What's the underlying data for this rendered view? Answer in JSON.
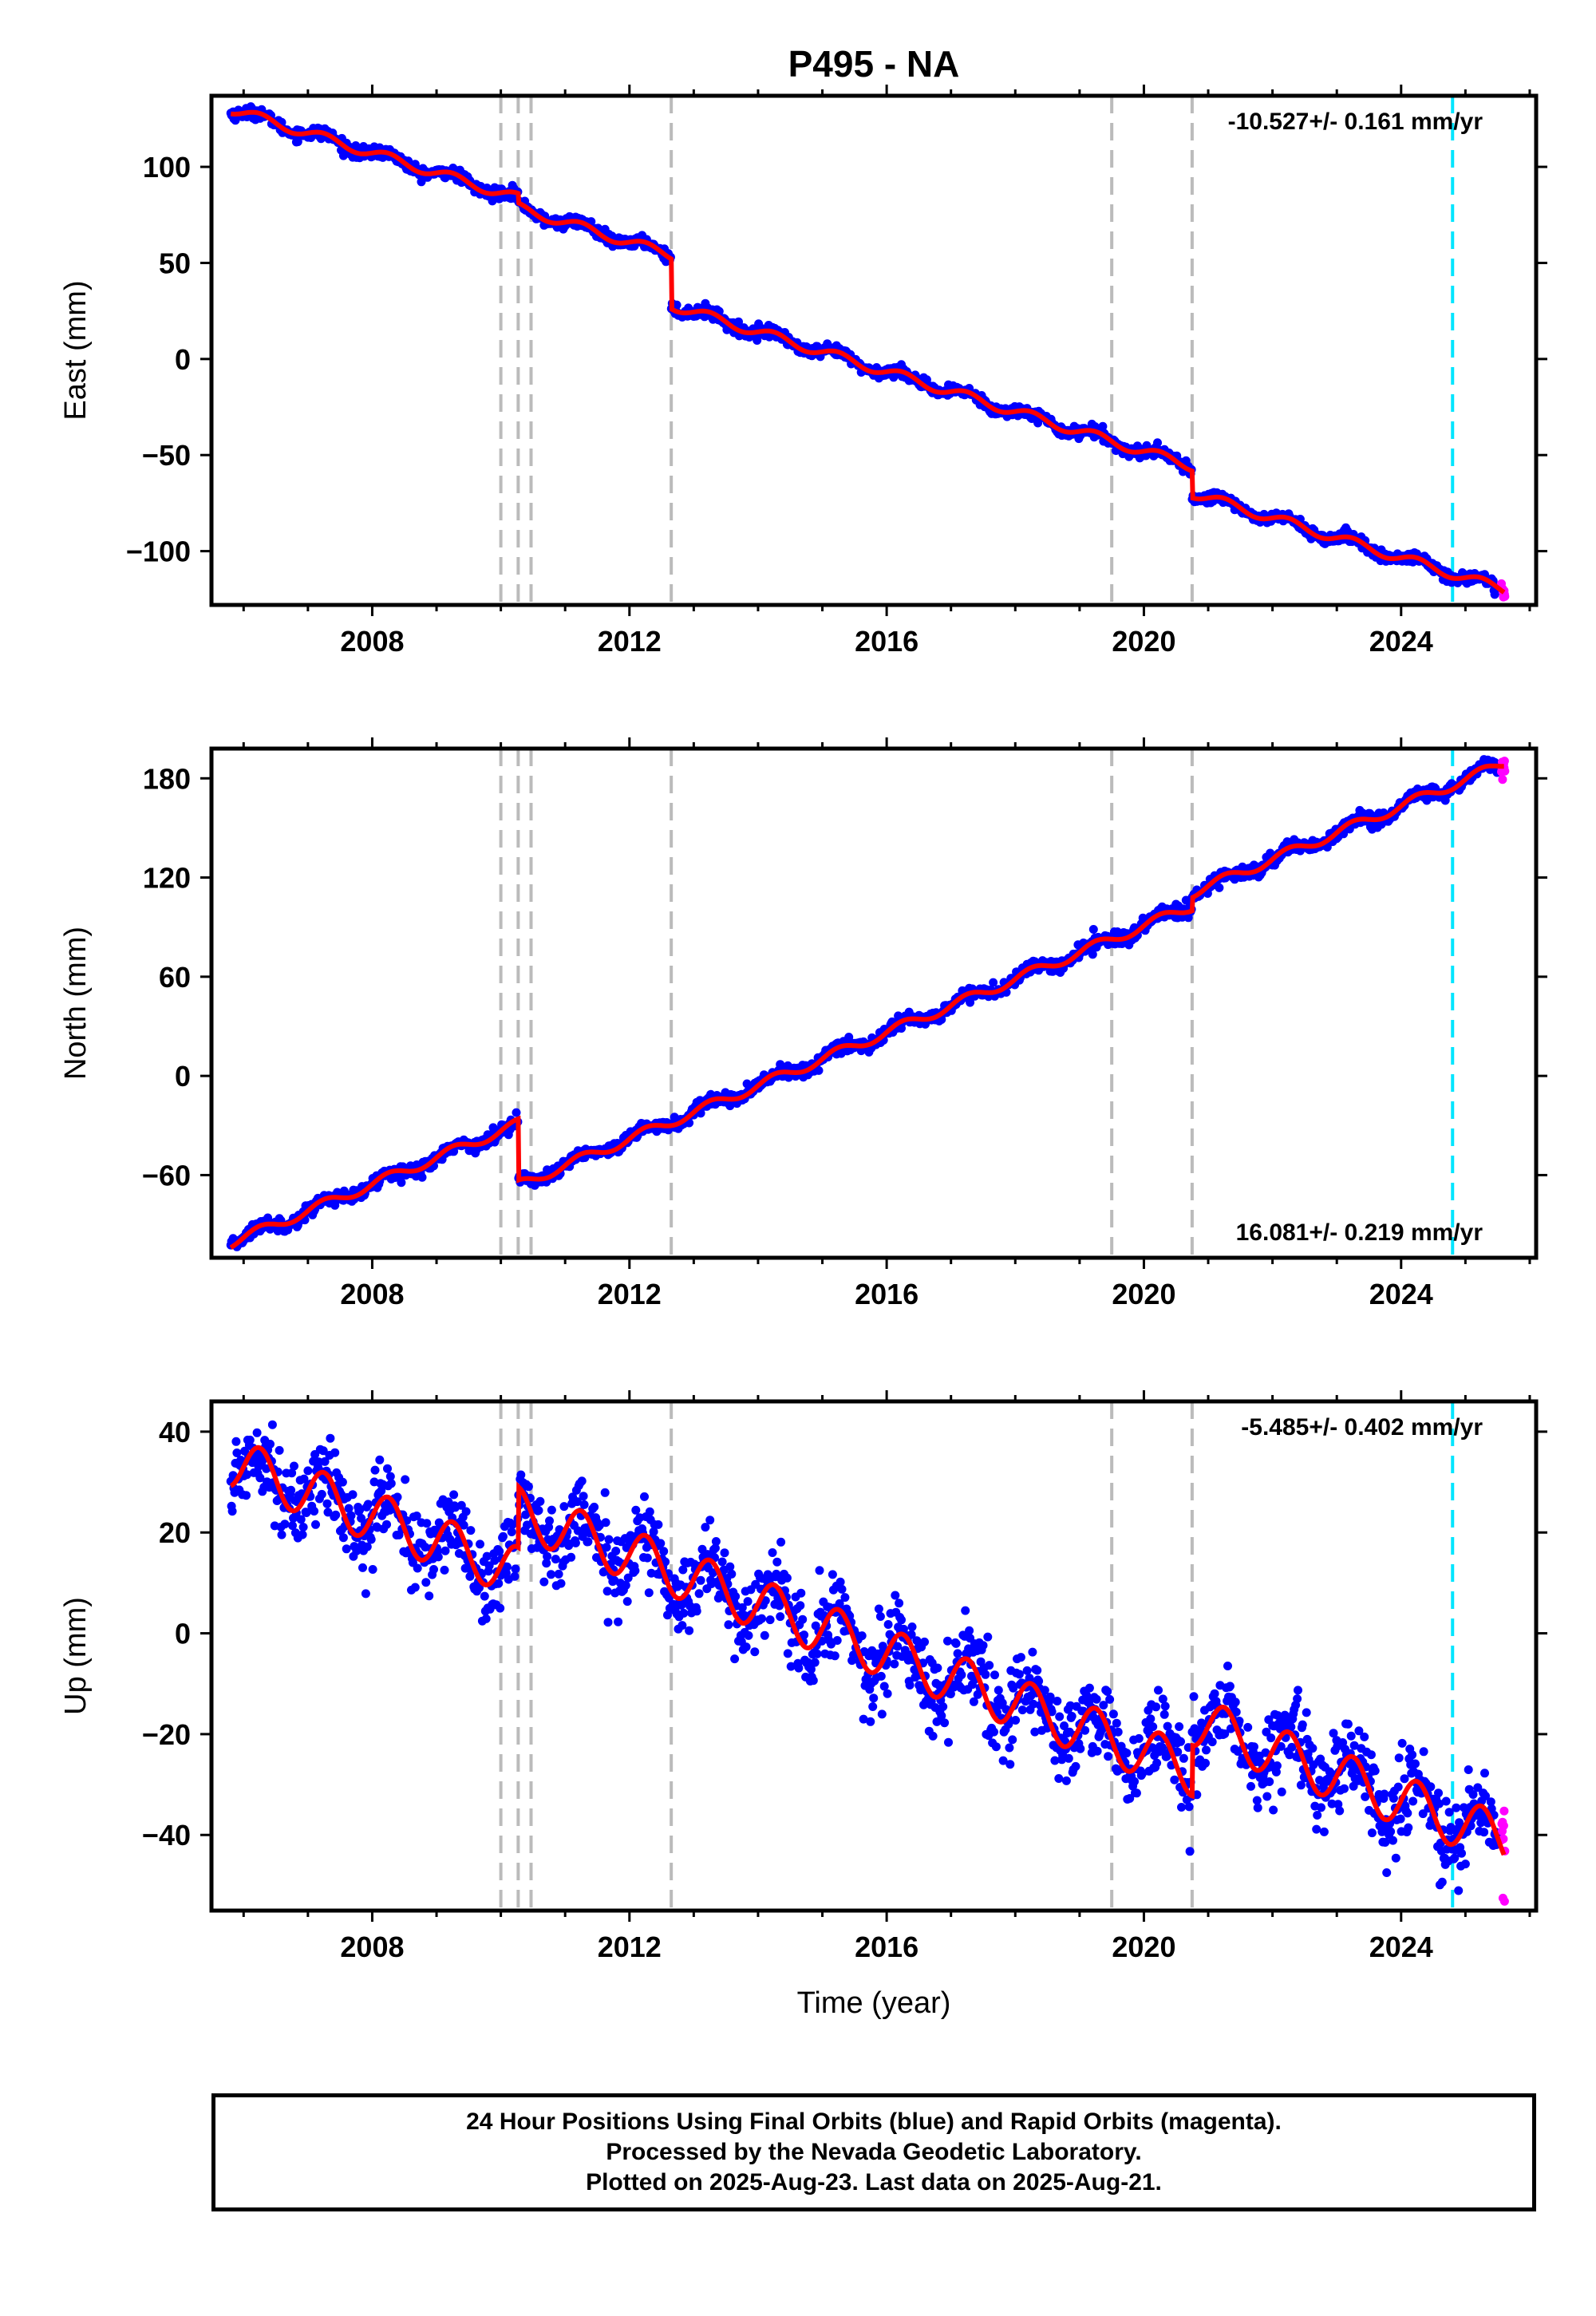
{
  "title": "P495 - NA",
  "footer": {
    "line1": "24 Hour Positions Using Final Orbits (blue) and Rapid Orbits (magenta).",
    "line2": "Processed by the Nevada Geodetic Laboratory.",
    "line3": "Plotted on 2025-Aug-23. Last data on 2025-Aug-21."
  },
  "colors": {
    "final_orbits": "#0000ff",
    "rapid_orbits": "#ff00ff",
    "model_fit": "#ff0000",
    "event_lines": "#bbbbbb",
    "rapid_start_line": "#00e5ff"
  },
  "chart_data": [
    {
      "type": "scatter",
      "panel": "east",
      "ylabel": "East (mm)",
      "xlabel": "",
      "xlim": [
        2005.5,
        2026.1
      ],
      "ylim": [
        -128,
        137
      ],
      "x_ticks": [
        2008,
        2012,
        2016,
        2020,
        2024
      ],
      "y_ticks": [
        100,
        50,
        0,
        -50,
        -100
      ],
      "rate_label": "-10.527+/- 0.161 mm/yr",
      "rate_position": "top-right",
      "event_lines": [
        2010.0,
        2010.27,
        2010.47,
        2012.65,
        2019.5,
        2020.75
      ],
      "rapid_start": 2024.8,
      "trend": {
        "start": [
          2005.8,
          130
        ],
        "end": [
          2025.6,
          -120
        ],
        "offsets": [
          {
            "x": 2010.27,
            "dy": -5
          },
          {
            "x": 2012.65,
            "dy": -26
          },
          {
            "x": 2020.75,
            "dy": -14
          }
        ],
        "seasonal_amplitude": 2.5,
        "noise": 1.5
      },
      "series": [
        {
          "name": "",
          "color": "#0000ff",
          "role": "final orbits"
        },
        {
          "name": "",
          "color": "#ff00ff",
          "role": "rapid orbits"
        },
        {
          "name": "",
          "color": "#ff0000",
          "role": "model"
        }
      ]
    },
    {
      "type": "scatter",
      "panel": "north",
      "ylabel": "North (mm)",
      "xlabel": "",
      "xlim": [
        2005.5,
        2026.1
      ],
      "ylim": [
        -110,
        198
      ],
      "x_ticks": [
        2008,
        2012,
        2016,
        2020,
        2024
      ],
      "y_ticks": [
        180,
        120,
        60,
        0,
        -60
      ],
      "rate_label": "16.081+/- 0.219 mm/yr",
      "rate_position": "bottom-right",
      "event_lines": [
        2010.0,
        2010.27,
        2010.47,
        2012.65,
        2019.5,
        2020.75
      ],
      "rapid_start": 2024.8,
      "trend": {
        "start": [
          2005.8,
          -101
        ],
        "end": [
          2025.6,
          189
        ],
        "offsets": [
          {
            "x": 2010.27,
            "dy": -37
          },
          {
            "x": 2020.75,
            "dy": 8
          }
        ],
        "seasonal_amplitude": 3,
        "noise": 2
      },
      "series": [
        {
          "name": "",
          "color": "#0000ff",
          "role": "final orbits"
        },
        {
          "name": "",
          "color": "#ff00ff",
          "role": "rapid orbits"
        },
        {
          "name": "",
          "color": "#ff0000",
          "role": "model"
        }
      ]
    },
    {
      "type": "scatter",
      "panel": "up",
      "ylabel": "Up (mm)",
      "xlabel": "Time (year)",
      "xlim": [
        2005.5,
        2026.1
      ],
      "ylim": [
        -55,
        46
      ],
      "x_ticks": [
        2008,
        2012,
        2016,
        2020,
        2024
      ],
      "y_ticks": [
        40,
        20,
        0,
        -20,
        -40
      ],
      "rate_label": "-5.485+/- 0.402 mm/yr",
      "rate_position": "top-right",
      "event_lines": [
        2010.0,
        2010.27,
        2010.47,
        2012.65,
        2019.5,
        2020.75
      ],
      "rapid_start": 2024.8,
      "trend": {
        "start": [
          2005.8,
          34
        ],
        "end": [
          2025.6,
          -41
        ],
        "offsets": [
          {
            "x": 2010.27,
            "dy": 12
          },
          {
            "x": 2020.75,
            "dy": 10
          }
        ],
        "seasonal_amplitude": 5,
        "noise": 4
      },
      "series": [
        {
          "name": "",
          "color": "#0000ff",
          "role": "final orbits"
        },
        {
          "name": "",
          "color": "#ff00ff",
          "role": "rapid orbits"
        },
        {
          "name": "",
          "color": "#ff0000",
          "role": "model"
        }
      ]
    }
  ]
}
